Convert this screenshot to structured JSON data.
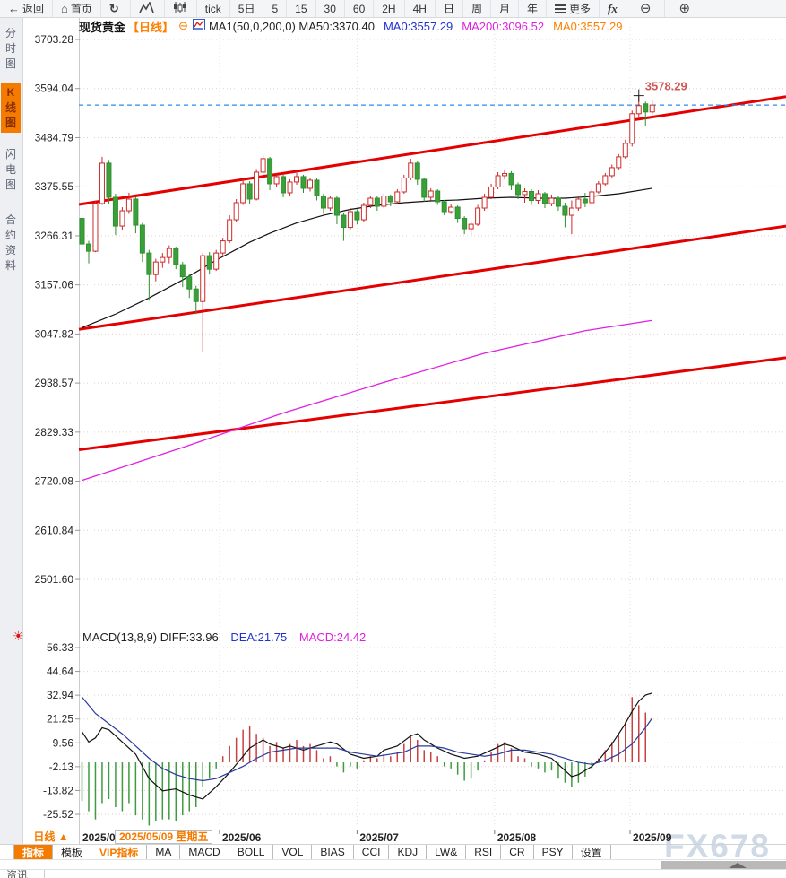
{
  "toolbar": {
    "items": [
      {
        "name": "back-button",
        "icon": "back-arrow-icon",
        "label": "返回"
      },
      {
        "name": "home-button",
        "icon": "home-icon",
        "label": "首页"
      },
      {
        "name": "refresh-button",
        "icon": "refresh-icon",
        "label": ""
      },
      {
        "name": "mountain-chart-button",
        "icon": "mountain-chart-icon",
        "label": ""
      },
      {
        "name": "candlestick-view-button",
        "icon": "candlestick-icon",
        "label": ""
      },
      {
        "name": "period-tick-button",
        "label": "tick"
      },
      {
        "name": "period-5day-button",
        "label": "5日"
      },
      {
        "name": "period-5min-button",
        "label": "5"
      },
      {
        "name": "period-15min-button",
        "label": "15"
      },
      {
        "name": "period-30min-button",
        "label": "30"
      },
      {
        "name": "period-60min-button",
        "label": "60"
      },
      {
        "name": "period-2h-button",
        "label": "2H"
      },
      {
        "name": "period-4h-button",
        "label": "4H"
      },
      {
        "name": "period-day-button",
        "label": "日"
      },
      {
        "name": "period-week-button",
        "label": "周"
      },
      {
        "name": "period-month-button",
        "label": "月"
      },
      {
        "name": "period-year-button",
        "label": "年"
      },
      {
        "name": "more-button",
        "icon": "menu-icon",
        "label": "更多"
      },
      {
        "name": "formula-button",
        "icon": "fx",
        "label": "fx"
      },
      {
        "name": "zoom-out-button",
        "icon": "zoom-out-icon",
        "label": ""
      },
      {
        "name": "zoom-in-button",
        "icon": "zoom-in-icon",
        "label": ""
      }
    ]
  },
  "sidebar": {
    "items": [
      {
        "label": "分时图",
        "selected": false
      },
      {
        "label": "K线图",
        "selected": true
      },
      {
        "label": "闪电图",
        "selected": false
      },
      {
        "label": "合约资料",
        "selected": false
      }
    ]
  },
  "main_header": {
    "symbol": "现货黄金",
    "period": "【日线】",
    "collapse_glyph": "⊖",
    "ma_settings": "MA1(50,0,200,0) MA50:3370.40",
    "ma0_blue": "MA0:3557.29",
    "ma200_magenta": "MA200:3096.52",
    "ma0_orange": "MA0:3557.29"
  },
  "macd_header": {
    "title": "MACD(13,8,9) DIFF:33.96",
    "dea": "DEA:21.75",
    "macd": "MACD:24.42"
  },
  "bottom": {
    "period_label": "日线 ▲",
    "axis_left": "2025/0",
    "tooltip": "2025/05/09 星期五",
    "months": [
      "2025/06",
      "2025/07",
      "2025/08",
      "2025/09"
    ],
    "tabs": [
      {
        "label": "指标",
        "state": "selected"
      },
      {
        "label": "模板",
        "state": ""
      },
      {
        "label": "VIP指标",
        "state": "vip"
      },
      {
        "label": "MA",
        "state": ""
      },
      {
        "label": "MACD",
        "state": ""
      },
      {
        "label": "BOLL",
        "state": ""
      },
      {
        "label": "VOL",
        "state": ""
      },
      {
        "label": "BIAS",
        "state": ""
      },
      {
        "label": "CCI",
        "state": ""
      },
      {
        "label": "KDJ",
        "state": ""
      },
      {
        "label": "LW&",
        "state": ""
      },
      {
        "label": "RSI",
        "state": ""
      },
      {
        "label": "CR",
        "state": ""
      },
      {
        "label": "PSY",
        "state": ""
      },
      {
        "label": "设置",
        "state": ""
      }
    ],
    "news_tab": "资讯",
    "watermark": "FX678"
  },
  "colors": {
    "accent_orange": "#f57b00",
    "up_candle": "#cc2a2a",
    "down_candle": "#3aa03a",
    "down_candle_stroke": "#2f8f2f",
    "channel_red": "#e40000",
    "ma50_line": "#111111",
    "ma200_line": "#e020e0",
    "price_line_blue": "#2d8cf0",
    "high_label_red": "#d05858",
    "hist_up": "#c94040",
    "hist_down": "#3f9b3f",
    "dea_blue": "#2a3a9e",
    "grid_pink": "#e6cfcf",
    "grid_gray": "#dedede"
  },
  "chart_data": [
    {
      "type": "candlestick",
      "title": "现货黄金 日线",
      "y_ticks": [
        "3703.28",
        "3594.04",
        "3484.79",
        "3375.55",
        "3266.31",
        "3157.06",
        "3047.82",
        "2938.57",
        "2829.33",
        "2720.08",
        "2610.84",
        "2501.60"
      ],
      "x_labels": [
        "2025/06",
        "2025/07",
        "2025/08",
        "2025/09"
      ],
      "x_tick_indices": [
        20.5,
        41,
        61.5,
        81.7
      ],
      "last_price": 3557.29,
      "high_marker": {
        "index": 83,
        "price": 3578.29,
        "label": "3578.29"
      },
      "candles": [
        [
          3305,
          3312,
          3240,
          3248
        ],
        [
          3248,
          3255,
          3205,
          3232
        ],
        [
          3232,
          3345,
          3230,
          3338
        ],
        [
          3338,
          3442,
          3335,
          3428
        ],
        [
          3428,
          3435,
          3338,
          3352
        ],
        [
          3352,
          3360,
          3268,
          3288
        ],
        [
          3288,
          3330,
          3280,
          3322
        ],
        [
          3322,
          3362,
          3315,
          3348
        ],
        [
          3348,
          3352,
          3272,
          3290
        ],
        [
          3290,
          3295,
          3208,
          3228
        ],
        [
          3228,
          3235,
          3122,
          3180
        ],
        [
          3180,
          3215,
          3165,
          3208
        ],
        [
          3208,
          3228,
          3195,
          3218
        ],
        [
          3218,
          3245,
          3205,
          3238
        ],
        [
          3238,
          3242,
          3192,
          3202
        ],
        [
          3202,
          3208,
          3152,
          3175
        ],
        [
          3175,
          3182,
          3128,
          3148
        ],
        [
          3148,
          3155,
          3092,
          3120
        ],
        [
          3120,
          3228,
          3008,
          3222
        ],
        [
          3222,
          3230,
          3180,
          3192
        ],
        [
          3192,
          3235,
          3188,
          3228
        ],
        [
          3228,
          3262,
          3222,
          3255
        ],
        [
          3255,
          3312,
          3250,
          3302
        ],
        [
          3302,
          3348,
          3298,
          3340
        ],
        [
          3340,
          3392,
          3335,
          3382
        ],
        [
          3382,
          3388,
          3338,
          3348
        ],
        [
          3348,
          3415,
          3345,
          3408
        ],
        [
          3408,
          3446,
          3402,
          3438
        ],
        [
          3438,
          3442,
          3368,
          3382
        ],
        [
          3382,
          3405,
          3375,
          3398
        ],
        [
          3398,
          3402,
          3352,
          3362
        ],
        [
          3362,
          3392,
          3355,
          3386
        ],
        [
          3386,
          3406,
          3380,
          3398
        ],
        [
          3398,
          3402,
          3362,
          3372
        ],
        [
          3372,
          3395,
          3365,
          3390
        ],
        [
          3390,
          3394,
          3345,
          3355
        ],
        [
          3355,
          3360,
          3315,
          3328
        ],
        [
          3328,
          3356,
          3322,
          3350
        ],
        [
          3350,
          3354,
          3292,
          3312
        ],
        [
          3312,
          3318,
          3255,
          3285
        ],
        [
          3285,
          3328,
          3280,
          3320
        ],
        [
          3320,
          3325,
          3292,
          3302
        ],
        [
          3302,
          3340,
          3298,
          3334
        ],
        [
          3334,
          3356,
          3328,
          3350
        ],
        [
          3350,
          3354,
          3322,
          3332
        ],
        [
          3332,
          3360,
          3328,
          3355
        ],
        [
          3355,
          3358,
          3332,
          3342
        ],
        [
          3342,
          3370,
          3338,
          3364
        ],
        [
          3364,
          3402,
          3360,
          3395
        ],
        [
          3395,
          3438,
          3390,
          3428
        ],
        [
          3428,
          3432,
          3380,
          3392
        ],
        [
          3392,
          3396,
          3342,
          3352
        ],
        [
          3352,
          3372,
          3345,
          3366
        ],
        [
          3366,
          3370,
          3335,
          3342
        ],
        [
          3342,
          3346,
          3312,
          3320
        ],
        [
          3320,
          3338,
          3315,
          3330
        ],
        [
          3330,
          3334,
          3295,
          3305
        ],
        [
          3305,
          3310,
          3270,
          3282
        ],
        [
          3282,
          3300,
          3265,
          3292
        ],
        [
          3292,
          3335,
          3288,
          3328
        ],
        [
          3328,
          3360,
          3322,
          3352
        ],
        [
          3352,
          3382,
          3348,
          3375
        ],
        [
          3375,
          3408,
          3370,
          3400
        ],
        [
          3400,
          3412,
          3392,
          3405
        ],
        [
          3405,
          3410,
          3368,
          3380
        ],
        [
          3380,
          3385,
          3348,
          3358
        ],
        [
          3358,
          3372,
          3340,
          3365
        ],
        [
          3365,
          3370,
          3335,
          3345
        ],
        [
          3345,
          3368,
          3338,
          3360
        ],
        [
          3360,
          3364,
          3328,
          3338
        ],
        [
          3338,
          3358,
          3332,
          3350
        ],
        [
          3350,
          3354,
          3322,
          3332
        ],
        [
          3332,
          3340,
          3285,
          3312
        ],
        [
          3312,
          3345,
          3270,
          3328
        ],
        [
          3328,
          3355,
          3322,
          3348
        ],
        [
          3348,
          3362,
          3330,
          3340
        ],
        [
          3340,
          3370,
          3336,
          3364
        ],
        [
          3364,
          3388,
          3360,
          3382
        ],
        [
          3382,
          3406,
          3378,
          3400
        ],
        [
          3400,
          3425,
          3396,
          3418
        ],
        [
          3418,
          3448,
          3414,
          3442
        ],
        [
          3442,
          3480,
          3438,
          3472
        ],
        [
          3472,
          3545,
          3465,
          3538
        ],
        [
          3538,
          3578.29,
          3530,
          3556
        ],
        [
          3560,
          3565,
          3510,
          3542
        ],
        [
          3542,
          3568,
          3536,
          3557.29
        ]
      ],
      "ma50_points": [
        [
          0,
          3062
        ],
        [
          5,
          3092
        ],
        [
          10,
          3128
        ],
        [
          15,
          3168
        ],
        [
          20,
          3212
        ],
        [
          25,
          3252
        ],
        [
          28,
          3272
        ],
        [
          32,
          3295
        ],
        [
          36,
          3312
        ],
        [
          40,
          3325
        ],
        [
          44,
          3334
        ],
        [
          48,
          3340
        ],
        [
          52,
          3344
        ],
        [
          56,
          3346
        ],
        [
          60,
          3350
        ],
        [
          64,
          3352
        ],
        [
          68,
          3350
        ],
        [
          72,
          3350
        ],
        [
          76,
          3354
        ],
        [
          80,
          3360
        ],
        [
          85,
          3372
        ]
      ],
      "ma200_points": [
        [
          0,
          2722
        ],
        [
          15,
          2795
        ],
        [
          30,
          2872
        ],
        [
          45,
          2940
        ],
        [
          60,
          3005
        ],
        [
          75,
          3055
        ],
        [
          85,
          3078
        ]
      ],
      "channel_lines": [
        {
          "p1": 3336,
          "p2": 3576
        },
        {
          "p1": 3058,
          "p2": 3288
        },
        {
          "p1": 2790,
          "p2": 2995
        }
      ]
    },
    {
      "type": "bar",
      "name": "MACD",
      "params": "(13,8,9)",
      "diff": 33.96,
      "dea": 21.75,
      "macd": 24.42,
      "y_ticks": [
        "56.33",
        "44.64",
        "32.94",
        "21.25",
        "9.56",
        "-2.13",
        "-13.82",
        "-25.52"
      ],
      "histogram": [
        -19,
        -24,
        -28,
        -20,
        -18,
        -22,
        -24,
        -20,
        -26,
        -28,
        -31,
        -29,
        -28,
        -28,
        -29,
        -26,
        -24,
        -22,
        -12,
        -8,
        -3,
        3,
        8,
        12,
        16,
        18,
        14,
        12,
        8,
        10,
        7,
        9,
        11,
        8,
        9,
        6,
        2,
        3,
        -2,
        -5,
        -2,
        -3,
        1,
        3,
        2,
        4,
        3,
        5,
        9,
        13,
        11,
        6,
        5,
        3,
        -2,
        -3,
        -6,
        -9,
        -8,
        -4,
        1,
        5,
        9,
        10,
        7,
        3,
        2,
        -2,
        -3,
        -5,
        -4,
        -8,
        -10,
        -12,
        -10,
        -7,
        -3,
        2,
        6,
        10,
        14,
        20,
        32,
        28,
        24.42
      ],
      "diff_points": [
        [
          0,
          15
        ],
        [
          1,
          10
        ],
        [
          2,
          12
        ],
        [
          3,
          17
        ],
        [
          4,
          16
        ],
        [
          6,
          10
        ],
        [
          8,
          4
        ],
        [
          10,
          -8
        ],
        [
          12,
          -14
        ],
        [
          14,
          -13
        ],
        [
          16,
          -16
        ],
        [
          18,
          -18
        ],
        [
          20,
          -12
        ],
        [
          22,
          -5
        ],
        [
          24,
          3
        ],
        [
          25,
          7
        ],
        [
          27,
          11
        ],
        [
          28,
          9
        ],
        [
          30,
          7
        ],
        [
          31,
          8
        ],
        [
          33,
          6
        ],
        [
          35,
          8
        ],
        [
          37,
          10
        ],
        [
          38,
          9
        ],
        [
          40,
          4
        ],
        [
          42,
          2
        ],
        [
          44,
          3
        ],
        [
          45,
          6
        ],
        [
          47,
          8
        ],
        [
          49,
          13
        ],
        [
          50,
          14
        ],
        [
          51,
          11
        ],
        [
          53,
          7
        ],
        [
          55,
          4
        ],
        [
          57,
          2
        ],
        [
          59,
          3
        ],
        [
          61,
          6
        ],
        [
          63,
          9
        ],
        [
          64,
          8
        ],
        [
          66,
          5
        ],
        [
          68,
          4
        ],
        [
          70,
          2
        ],
        [
          72,
          -4
        ],
        [
          73,
          -7
        ],
        [
          74,
          -6
        ],
        [
          76,
          -2
        ],
        [
          77,
          1
        ],
        [
          78,
          5
        ],
        [
          79,
          9
        ],
        [
          80,
          14
        ],
        [
          81,
          19
        ],
        [
          82,
          25
        ],
        [
          83,
          30
        ],
        [
          84,
          33
        ],
        [
          85,
          33.96
        ]
      ],
      "dea_points": [
        [
          0,
          32
        ],
        [
          2,
          24
        ],
        [
          4,
          19
        ],
        [
          6,
          14
        ],
        [
          8,
          8
        ],
        [
          10,
          2
        ],
        [
          12,
          -3
        ],
        [
          14,
          -6
        ],
        [
          16,
          -8
        ],
        [
          18,
          -9
        ],
        [
          20,
          -8
        ],
        [
          22,
          -5
        ],
        [
          24,
          -2
        ],
        [
          26,
          2
        ],
        [
          28,
          5
        ],
        [
          30,
          6
        ],
        [
          32,
          7
        ],
        [
          34,
          7
        ],
        [
          36,
          7
        ],
        [
          38,
          7
        ],
        [
          40,
          5
        ],
        [
          42,
          4
        ],
        [
          44,
          3
        ],
        [
          46,
          4
        ],
        [
          48,
          5
        ],
        [
          50,
          8
        ],
        [
          52,
          8
        ],
        [
          54,
          7
        ],
        [
          56,
          5
        ],
        [
          58,
          4
        ],
        [
          60,
          3
        ],
        [
          62,
          4
        ],
        [
          64,
          6
        ],
        [
          66,
          6
        ],
        [
          68,
          5
        ],
        [
          70,
          4
        ],
        [
          72,
          2
        ],
        [
          74,
          0
        ],
        [
          76,
          -1
        ],
        [
          78,
          1
        ],
        [
          80,
          4
        ],
        [
          82,
          9
        ],
        [
          83,
          13
        ],
        [
          84,
          17
        ],
        [
          85,
          21.75
        ]
      ]
    }
  ]
}
